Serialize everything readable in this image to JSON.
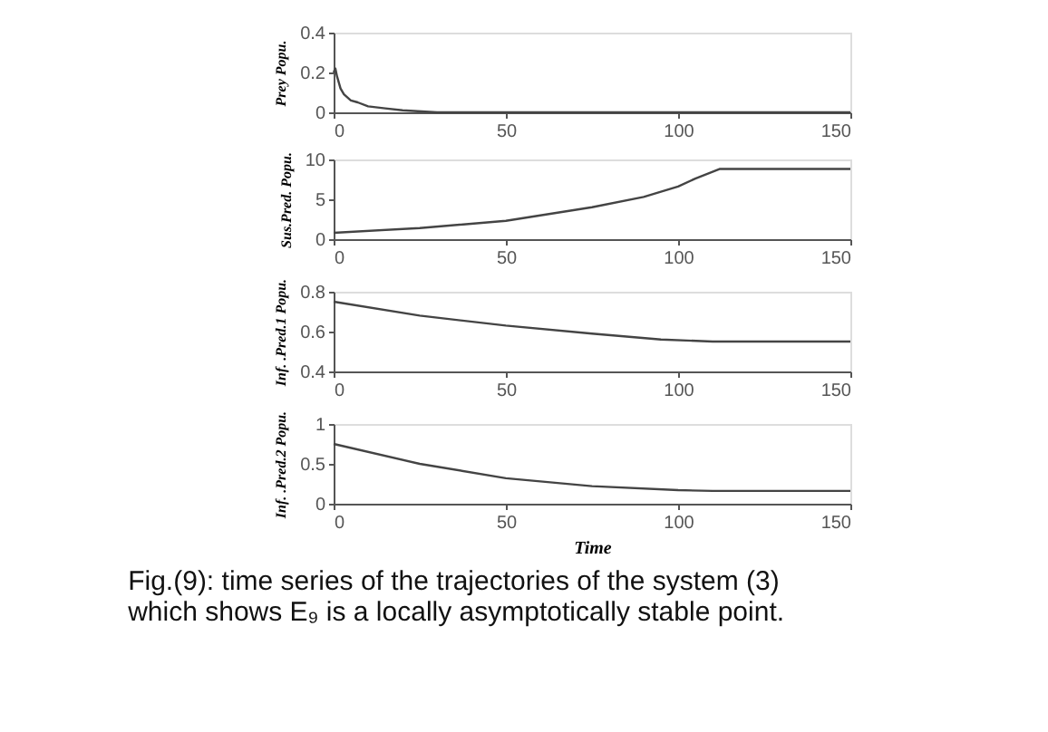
{
  "chart_data": [
    {
      "type": "line",
      "ylabel": "Prey Popu.",
      "x": [
        0,
        0.5,
        1,
        2,
        3,
        5,
        7,
        10,
        15,
        20,
        30,
        45,
        60,
        150
      ],
      "series": [
        {
          "color": "#444444",
          "values": [
            0.2,
            0.22,
            0.18,
            0.12,
            0.09,
            0.06,
            0.05,
            0.03,
            0.02,
            0.01,
            0,
            0,
            0,
            0
          ]
        }
      ],
      "xlim": [
        0,
        150
      ],
      "xticks": [
        0,
        50,
        100,
        150
      ],
      "ylim": [
        0,
        0.4
      ],
      "yticks": [
        0,
        0.2,
        0.4
      ],
      "grid": false,
      "line_style": "solid",
      "marker": "none"
    },
    {
      "type": "line",
      "ylabel": "Sus.Pred. Popu.",
      "x": [
        0,
        25,
        50,
        75,
        90,
        100,
        105,
        112,
        150
      ],
      "series": [
        {
          "color": "#444444",
          "values": [
            0.8,
            1.4,
            2.3,
            4.0,
            5.3,
            6.6,
            7.6,
            8.8,
            8.8
          ]
        }
      ],
      "xlim": [
        0,
        150
      ],
      "xticks": [
        0,
        50,
        100,
        150
      ],
      "ylim": [
        0,
        10
      ],
      "yticks": [
        0,
        5,
        10
      ],
      "grid": false,
      "line_style": "solid",
      "marker": "none"
    },
    {
      "type": "line",
      "ylabel": "Inf. .Pred.1 Popu.",
      "x": [
        0,
        25,
        50,
        75,
        95,
        110,
        150
      ],
      "series": [
        {
          "color": "#444444",
          "values": [
            0.75,
            0.68,
            0.63,
            0.59,
            0.56,
            0.55,
            0.55
          ]
        }
      ],
      "xlim": [
        0,
        150
      ],
      "xticks": [
        0,
        50,
        100,
        150
      ],
      "ylim": [
        0.4,
        0.8
      ],
      "yticks": [
        0.4,
        0.6,
        0.8
      ],
      "grid": false,
      "line_style": "solid",
      "marker": "none"
    },
    {
      "type": "line",
      "ylabel": "Inf. .Pred.2 Popu.",
      "xlabel": "Time",
      "x": [
        0,
        25,
        50,
        75,
        100,
        110,
        150
      ],
      "series": [
        {
          "color": "#444444",
          "values": [
            0.75,
            0.5,
            0.32,
            0.22,
            0.17,
            0.16,
            0.16
          ]
        }
      ],
      "xlim": [
        0,
        150
      ],
      "xticks": [
        0,
        50,
        100,
        150
      ],
      "ylim": [
        0,
        1
      ],
      "yticks": [
        0,
        0.5,
        1
      ],
      "grid": false,
      "line_style": "solid",
      "marker": "none",
      "annotations": [
        "Fig.(9): time series of the trajectories of the system (3)",
        "which shows  E₉  is a locally asymptotically stable point."
      ]
    }
  ]
}
